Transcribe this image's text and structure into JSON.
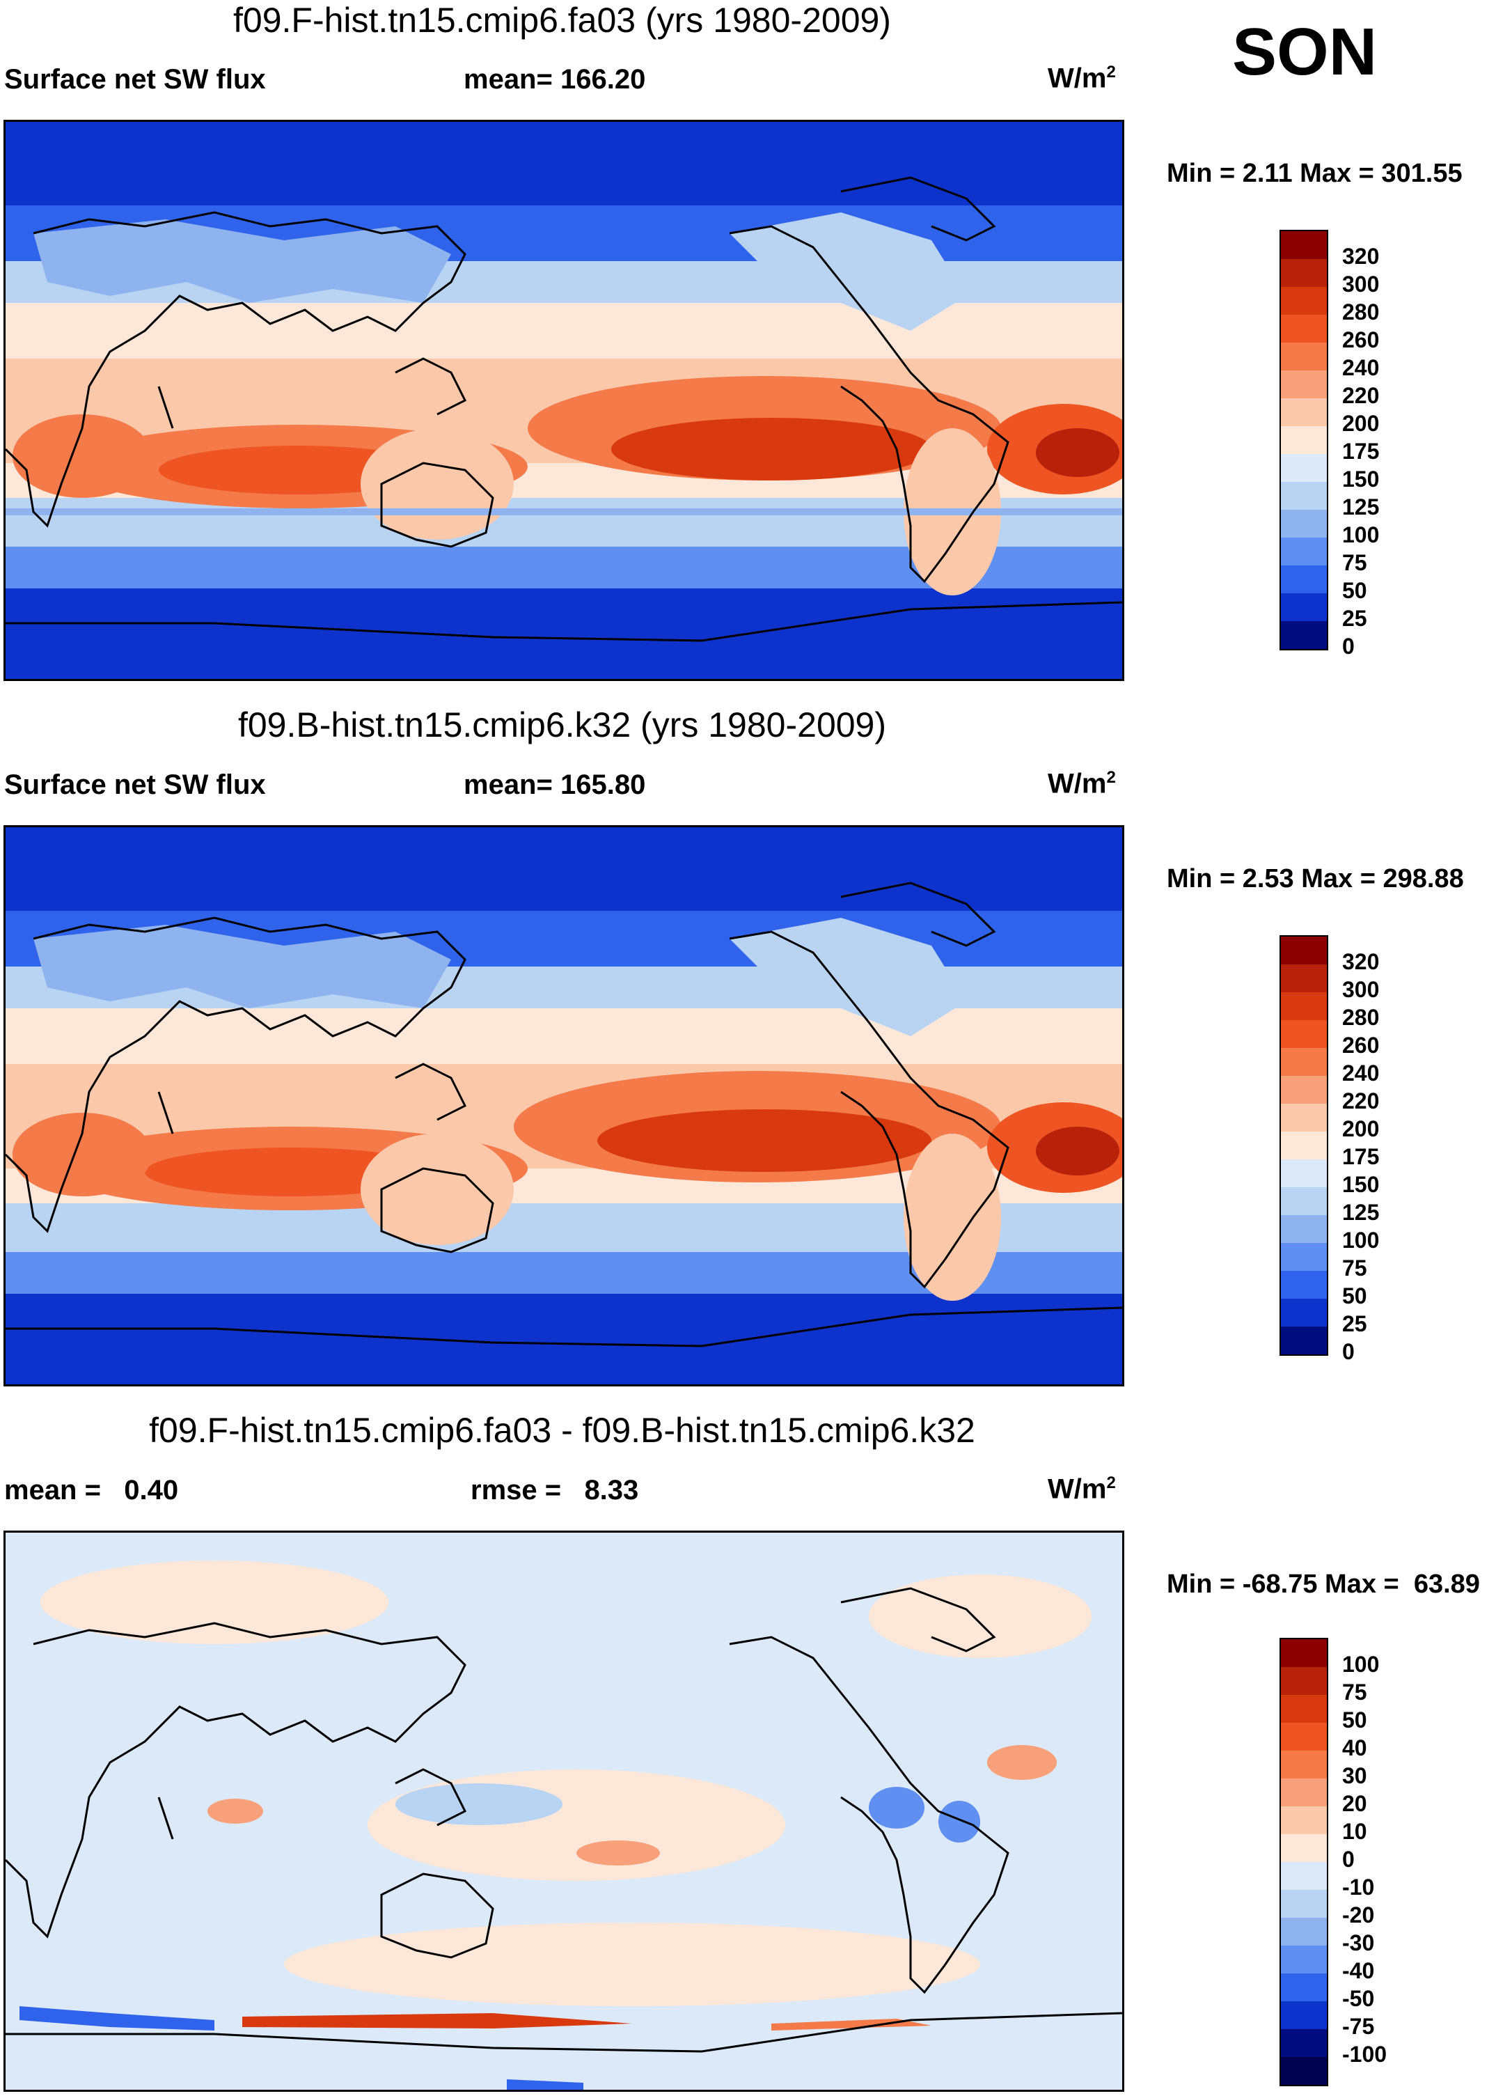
{
  "figure": {
    "season": "SON"
  },
  "panels": [
    {
      "title": "f09.F-hist.tn15.cmip6.fa03 (yrs 1980-2009)",
      "left_label": "Surface net SW flux",
      "center_label": "mean= 166.20",
      "units_base": "W/m",
      "units_exp": "2",
      "minmax": "Min =    2.11 Max = 301.55"
    },
    {
      "title": "f09.B-hist.tn15.cmip6.k32 (yrs 1980-2009)",
      "left_label": "Surface net SW flux",
      "center_label": "mean= 165.80",
      "units_base": "W/m",
      "units_exp": "2",
      "minmax": "Min =    2.53 Max = 298.88"
    },
    {
      "title": "f09.F-hist.tn15.cmip6.fa03 - f09.B-hist.tn15.cmip6.k32",
      "left_label": "mean =   0.40",
      "center_label": "rmse =   8.33",
      "units_base": "W/m",
      "units_exp": "2",
      "minmax": "Min = -68.75 Max =  63.89"
    }
  ],
  "chart_data": [
    {
      "type": "heatmap",
      "title": "f09.F-hist.tn15.cmip6.fa03 (yrs 1980-2009)",
      "variable": "Surface net SW flux",
      "units": "W/m2",
      "mean": 166.2,
      "min": 2.11,
      "max": 301.55,
      "colorbar_levels": [
        "320",
        "300",
        "280",
        "260",
        "240",
        "220",
        "200",
        "175",
        "150",
        "125",
        "100",
        "75",
        "50",
        "25",
        "0"
      ],
      "colors": [
        "#8b0000",
        "#b8210a",
        "#d9390f",
        "#ee5522",
        "#f47a4a",
        "#f7a07a",
        "#fbc9aa",
        "#fde7d8",
        "#dce9f8",
        "#b9d3f3",
        "#8fb3ee",
        "#5f8ff0",
        "#2f63eb",
        "#0d33cc",
        "#000d80"
      ]
    },
    {
      "type": "heatmap",
      "title": "f09.B-hist.tn15.cmip6.k32 (yrs 1980-2009)",
      "variable": "Surface net SW flux",
      "units": "W/m2",
      "mean": 165.8,
      "min": 2.53,
      "max": 298.88,
      "colorbar_levels": [
        "320",
        "300",
        "280",
        "260",
        "240",
        "220",
        "200",
        "175",
        "150",
        "125",
        "100",
        "75",
        "50",
        "25",
        "0"
      ],
      "colors": [
        "#8b0000",
        "#b8210a",
        "#d9390f",
        "#ee5522",
        "#f47a4a",
        "#f7a07a",
        "#fbc9aa",
        "#fde7d8",
        "#dce9f8",
        "#b9d3f3",
        "#8fb3ee",
        "#5f8ff0",
        "#2f63eb",
        "#0d33cc",
        "#000d80"
      ]
    },
    {
      "type": "heatmap",
      "title": "f09.F-hist.tn15.cmip6.fa03 - f09.B-hist.tn15.cmip6.k32",
      "variable": "difference",
      "units": "W/m2",
      "mean": 0.4,
      "rmse": 8.33,
      "min": -68.75,
      "max": 63.89,
      "colorbar_levels": [
        "100",
        "75",
        "50",
        "40",
        "30",
        "20",
        "10",
        "0",
        "-10",
        "-20",
        "-30",
        "-40",
        "-50",
        "-75",
        "-100"
      ],
      "colors": [
        "#8b0000",
        "#b8210a",
        "#d9390f",
        "#ee5522",
        "#f47a4a",
        "#f7a07a",
        "#fbc9aa",
        "#fde7d8",
        "#dce9f8",
        "#b9d3f3",
        "#8fb3ee",
        "#5f8ff0",
        "#2f63eb",
        "#0d33cc",
        "#000d80",
        "#000050"
      ]
    }
  ]
}
